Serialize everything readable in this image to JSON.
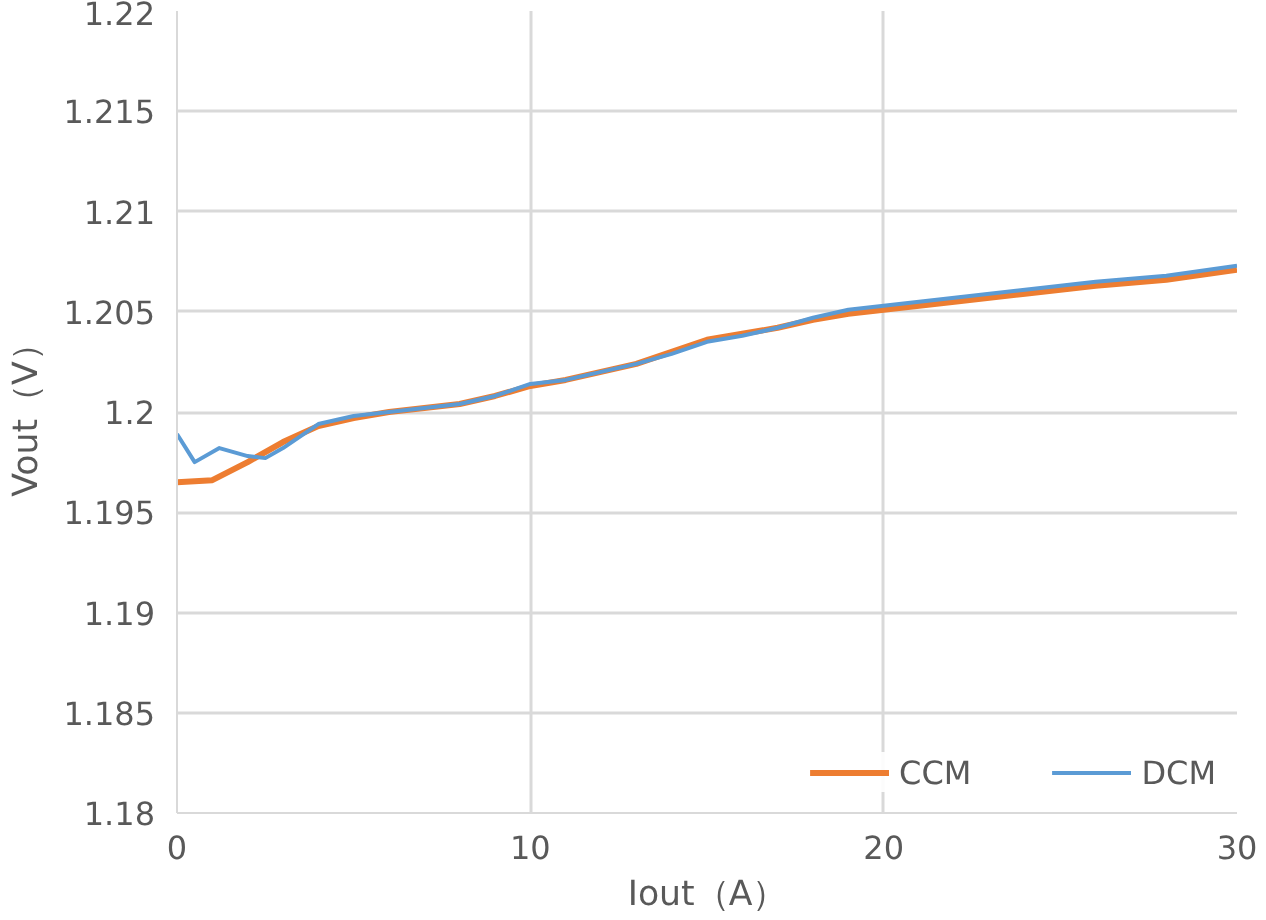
{
  "chart_data": {
    "type": "line",
    "xlabel": "Iout（A）",
    "ylabel": "Vout（V）",
    "xlim": [
      0,
      30
    ],
    "xticks": [
      0,
      10,
      20,
      30
    ],
    "ylim": [
      1.18,
      1.22
    ],
    "yticks": [
      1.18,
      1.185,
      1.19,
      1.195,
      1.2,
      1.205,
      1.21,
      1.215,
      1.22
    ],
    "grid": true,
    "legend": "bottom right",
    "line_style": "solid",
    "marker": "none",
    "series": [
      {
        "name": "CCM",
        "color": "#ed7d31",
        "x": [
          0,
          1,
          2,
          3,
          4,
          5,
          6,
          7,
          8,
          9,
          10,
          11,
          12,
          13,
          14,
          15,
          16,
          17,
          18,
          19,
          20,
          22,
          24,
          26,
          28,
          30
        ],
        "values": [
          1.1965,
          1.1966,
          1.1975,
          1.1985,
          1.1993,
          1.1997,
          1.2,
          1.2002,
          1.2004,
          1.2008,
          1.2013,
          1.2016,
          1.202,
          1.2024,
          1.203,
          1.2036,
          1.2039,
          1.2042,
          1.2046,
          1.2049,
          1.2051,
          1.2055,
          1.2059,
          1.2063,
          1.2066,
          1.2071
        ]
      },
      {
        "name": "DCM",
        "color": "#5b9bd5",
        "x": [
          0,
          0.5,
          1.2,
          2,
          2.5,
          3,
          4,
          5,
          6,
          7,
          8,
          9,
          10,
          11,
          12,
          13,
          14,
          15,
          16,
          17,
          18,
          19,
          20,
          22,
          24,
          26,
          28,
          30
        ],
        "values": [
          1.1989,
          1.1975,
          1.1982,
          1.1978,
          1.1977,
          1.1982,
          1.1994,
          1.1998,
          1.2,
          1.2002,
          1.2004,
          1.2008,
          1.2014,
          1.2016,
          1.202,
          1.2024,
          1.2029,
          1.2035,
          1.2038,
          1.2042,
          1.2047,
          1.2051,
          1.2053,
          1.2057,
          1.2061,
          1.2065,
          1.2068,
          1.2073
        ]
      }
    ]
  }
}
